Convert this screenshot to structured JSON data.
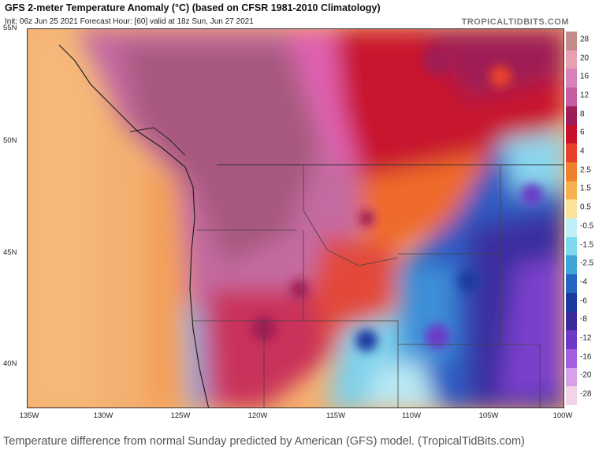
{
  "header": {
    "title": "GFS 2-meter Temperature Anomaly (°C) (based on CFSR 1981-2010 Climatology)",
    "subtitle": "Init: 06z Jun 25 2021   Forecast Hour: [60]   valid at 18z Sun, Jun 27 2021",
    "brand": "TROPICALTIDBITS.COM"
  },
  "axes": {
    "lat_labels": [
      "55N",
      "50N",
      "45N",
      "40N"
    ],
    "lon_labels": [
      "135W",
      "130W",
      "125W",
      "120W",
      "115W",
      "110W",
      "105W",
      "100W"
    ]
  },
  "colorbar": {
    "labels": [
      "28",
      "20",
      "16",
      "12",
      "8",
      "6",
      "4",
      "2.5",
      "1.5",
      "0.5",
      "-0.5",
      "-1.5",
      "-2.5",
      "-4",
      "-6",
      "-8",
      "-12",
      "-16",
      "-20",
      "-28"
    ],
    "colors": [
      "#c58a8a",
      "#e7a0b0",
      "#d880b8",
      "#c65ba0",
      "#9e1f55",
      "#c7122a",
      "#e8432a",
      "#f07f2e",
      "#f6b04e",
      "#fbe39a",
      "#bfeef6",
      "#7fd9ee",
      "#3ea5da",
      "#2365c2",
      "#1b3aa0",
      "#3a2a9a",
      "#6b3bc7",
      "#a35ee0",
      "#d7a0e8",
      "#f2d3e8"
    ]
  },
  "caption": "Temperature difference from normal Sunday predicted by American (GFS) model. (TropicalTidBits.com)"
}
